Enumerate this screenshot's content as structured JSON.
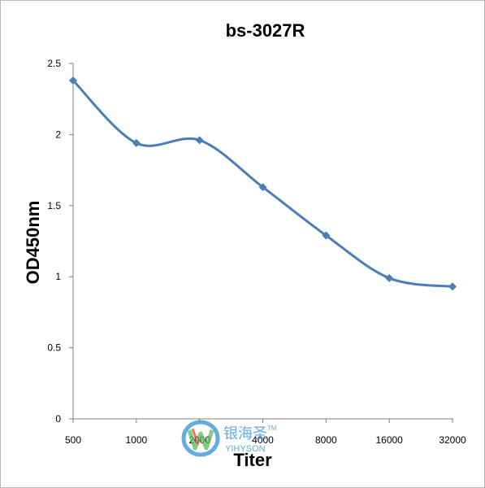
{
  "chart_data": {
    "type": "line",
    "title": "bs-3027R",
    "xlabel": "Titer",
    "ylabel": "OD450nm",
    "categories": [
      "500",
      "1000",
      "2000",
      "4000",
      "8000",
      "16000",
      "32000"
    ],
    "series": [
      {
        "values": [
          2.38,
          1.94,
          1.96,
          1.63,
          1.29,
          0.99,
          0.93
        ],
        "color": "#4a7ebb",
        "marker": "diamond",
        "smooth": true
      }
    ],
    "ylim": [
      0,
      2.5
    ],
    "yticks": [
      "0",
      "0.5",
      "1",
      "1.5",
      "2",
      "2.5"
    ],
    "grid": false,
    "legend": "none"
  },
  "watermark": {
    "brand_cn": "银海圣",
    "brand_en": "YIHYSON",
    "tm": "TM",
    "colors": {
      "blue": "#2f8fd8",
      "green": "#5cb85c",
      "red": "#e24b3b"
    }
  }
}
